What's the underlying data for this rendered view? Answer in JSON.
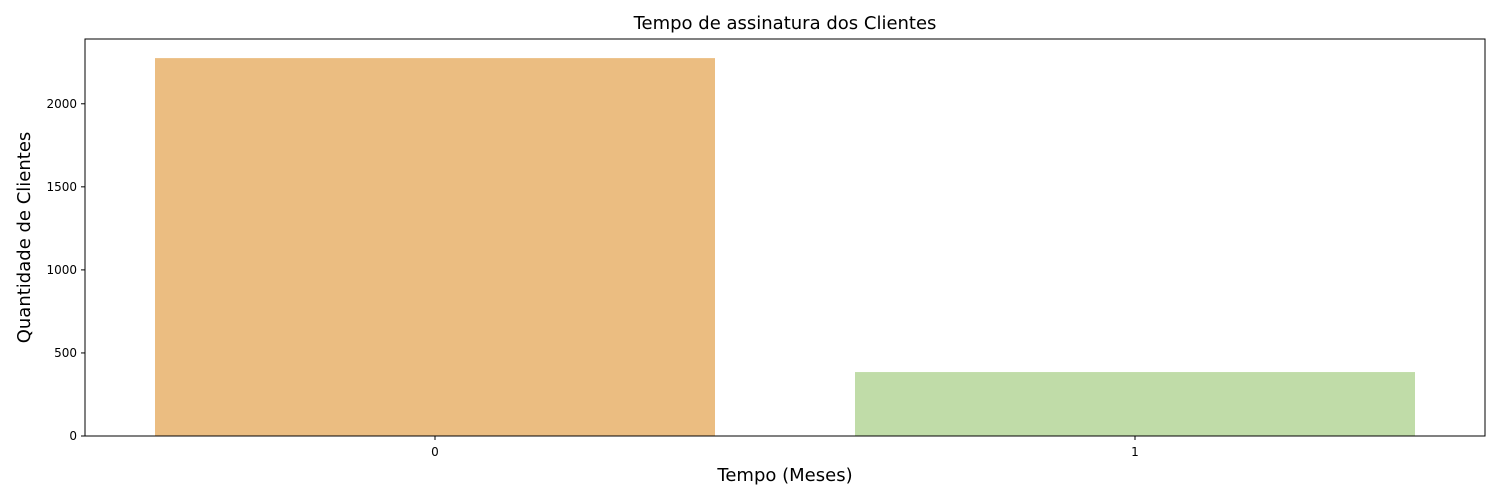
{
  "chart_data": {
    "type": "bar",
    "title": "Tempo de assinatura dos Clientes",
    "xlabel": "Tempo (Meses)",
    "ylabel": "Quantidade de Clientes",
    "categories": [
      "0",
      "1"
    ],
    "values": [
      2275,
      385
    ],
    "colors": [
      "#ebbd81",
      "#c0dca8"
    ],
    "ylim": [
      0,
      2390
    ],
    "yticks": [
      0,
      500,
      1000,
      1500,
      2000
    ],
    "grid": false,
    "legend": "none"
  }
}
